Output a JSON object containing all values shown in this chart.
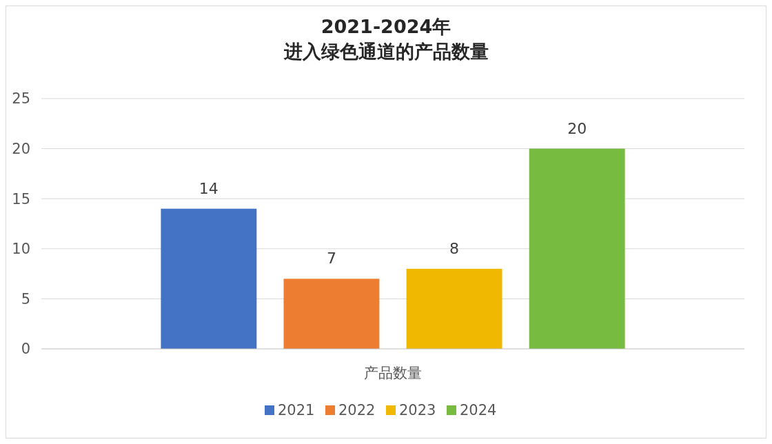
{
  "chart_data": {
    "type": "bar",
    "title": "2021-2024年",
    "subtitle": "进入绿色通道的产品数量",
    "categories": [
      "产品数量"
    ],
    "series": [
      {
        "name": "2021",
        "color": "#4472c4",
        "values": [
          14
        ]
      },
      {
        "name": "2022",
        "color": "#ed7d31",
        "values": [
          7
        ]
      },
      {
        "name": "2023",
        "color": "#f0b800",
        "values": [
          8
        ]
      },
      {
        "name": "2024",
        "color": "#77bc41",
        "values": [
          20
        ]
      }
    ],
    "ylim": [
      0,
      25
    ],
    "yticks": [
      0,
      5,
      10,
      15,
      20,
      25
    ],
    "grid": "y",
    "legend": "bottom",
    "data_labels": true
  }
}
